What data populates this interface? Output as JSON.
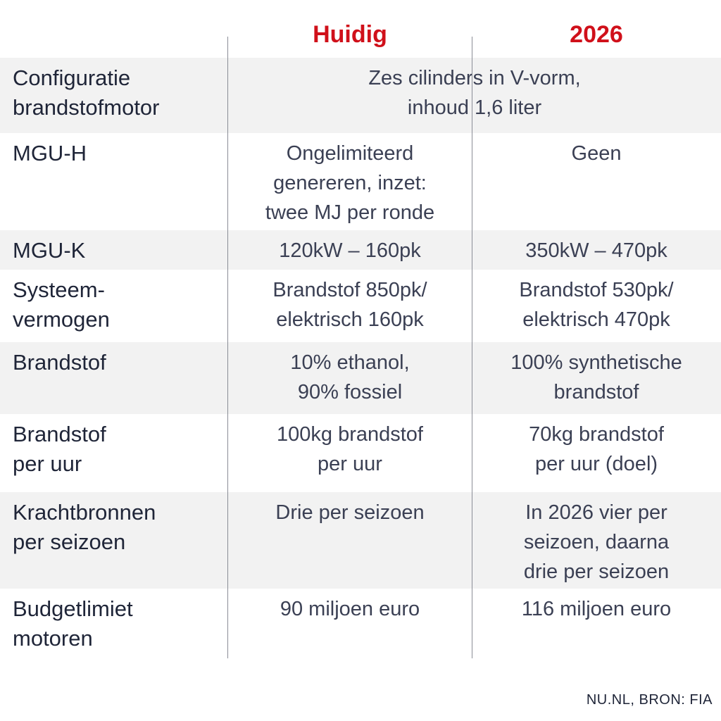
{
  "colors": {
    "header_accent": "#d0101a",
    "row_shade": "#f2f2f2",
    "divider": "#8a8d96",
    "text": "#1f2538"
  },
  "header": {
    "col_current": "Huidig",
    "col_future": "2026"
  },
  "rows": [
    {
      "label_lines": [
        "Configuratie",
        "brandstofmotor"
      ],
      "span_lines": [
        "Zes cilinders in V-vorm,",
        "inhoud 1,6 liter"
      ]
    },
    {
      "label_lines": [
        "MGU-H"
      ],
      "current_lines": [
        "Ongelimiteerd",
        "genereren, inzet:",
        "twee MJ per ronde"
      ],
      "future_lines": [
        "Geen"
      ]
    },
    {
      "label_lines": [
        "MGU-K"
      ],
      "current_lines": [
        "120kW – 160pk"
      ],
      "future_lines": [
        "350kW – 470pk"
      ]
    },
    {
      "label_lines": [
        "Systeem-",
        "vermogen"
      ],
      "current_lines": [
        "Brandstof 850pk/",
        "elektrisch 160pk"
      ],
      "future_lines": [
        "Brandstof 530pk/",
        "elektrisch 470pk"
      ]
    },
    {
      "label_lines": [
        "Brandstof"
      ],
      "current_lines": [
        "10% ethanol,",
        "90% fossiel"
      ],
      "future_lines": [
        "100% synthetische",
        "brandstof"
      ]
    },
    {
      "label_lines": [
        "Brandstof",
        "per uur"
      ],
      "current_lines": [
        "100kg brandstof",
        "per uur"
      ],
      "future_lines": [
        "70kg brandstof",
        "per uur (doel)"
      ]
    },
    {
      "label_lines": [
        "Krachtbronnen",
        "per seizoen"
      ],
      "current_lines": [
        "Drie per seizoen"
      ],
      "future_lines": [
        "In 2026 vier per",
        "seizoen, daarna",
        "drie per seizoen"
      ]
    },
    {
      "label_lines": [
        "Budgetlimiet",
        "motoren"
      ],
      "current_lines": [
        "90 miljoen euro"
      ],
      "future_lines": [
        "116 miljoen euro"
      ]
    }
  ],
  "source": "NU.NL, BRON: FIA"
}
